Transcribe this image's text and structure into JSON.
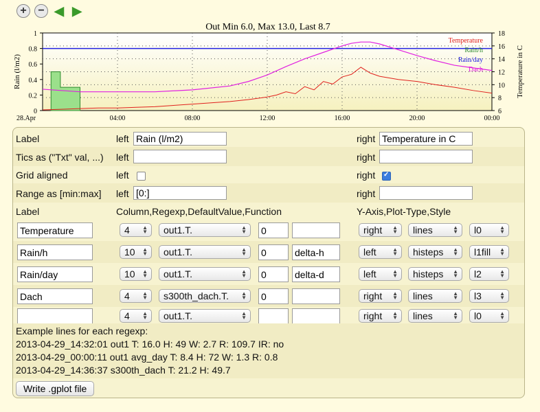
{
  "toolbar": [
    "zoom-in-icon",
    "zoom-out-icon",
    "arrow-left-icon",
    "arrow-right-icon"
  ],
  "chart_data": {
    "type": "line",
    "title": "Out Min 6.0, Max 13.0, Last 8.7",
    "ylabel_left": "Rain (l/m2)",
    "ylabel_right": "Temperature in C",
    "x_ticks": [
      "28.Apr",
      "04:00",
      "08:00",
      "12:00",
      "16:00",
      "20:00",
      "00:00"
    ],
    "y_left_ticks": [
      "0",
      "0.2",
      "0.4",
      "0.6",
      "0.8",
      "1"
    ],
    "y_right_ticks": [
      "6",
      "8",
      "10",
      "12",
      "14",
      "16",
      "18"
    ],
    "ylim_left": [
      0,
      1
    ],
    "ylim_right": [
      6,
      18
    ],
    "xlim_hours": [
      0,
      24
    ],
    "grid": true,
    "legend": "top-right",
    "series": [
      {
        "name": "Temperature",
        "axis": "right",
        "color": "#e0201c",
        "x": [
          0,
          1,
          2,
          3,
          4,
          5,
          6,
          7,
          8,
          9,
          10,
          11,
          12,
          12.5,
          13,
          13.5,
          14,
          14.5,
          15,
          15.5,
          16,
          16.5,
          17,
          17.5,
          18,
          19,
          20,
          21,
          22,
          23,
          24
        ],
        "y": [
          6.1,
          6.2,
          6.3,
          6.4,
          6.4,
          6.5,
          6.6,
          6.8,
          7.0,
          7.2,
          7.4,
          7.7,
          8.1,
          8.4,
          8.9,
          8.6,
          9.7,
          9.2,
          10.5,
          10.1,
          11.2,
          11.6,
          12.7,
          11.8,
          11.3,
          10.8,
          10.5,
          10.0,
          9.6,
          9.1,
          8.7
        ]
      },
      {
        "name": "Rain/h",
        "axis": "left",
        "color": "#2e8b2e",
        "x": [
          0.45,
          0.95,
          1.5,
          2.0
        ],
        "y": [
          0.5,
          0.3,
          0.3,
          0
        ]
      },
      {
        "name": "Rain/day",
        "axis": "left",
        "color": "#2020e0",
        "x": [
          0,
          24
        ],
        "y": [
          0.8,
          0.8
        ]
      },
      {
        "name": "Dach",
        "axis": "right",
        "color": "#e020e0",
        "x": [
          0,
          2,
          4,
          6,
          8,
          10,
          11,
          12,
          13,
          14,
          15,
          16,
          16.5,
          17,
          17.5,
          18,
          19,
          20,
          21,
          22,
          23,
          24
        ],
        "y": [
          9.3,
          8.9,
          8.9,
          8.9,
          9.2,
          9.8,
          10.5,
          11.5,
          12.8,
          14.0,
          15.0,
          16.0,
          16.4,
          16.6,
          16.6,
          16.3,
          15.4,
          14.5,
          13.7,
          13.0,
          12.6,
          12.2
        ]
      }
    ]
  },
  "form": {
    "header": {
      "label": "Label",
      "left": "left",
      "right": "right"
    },
    "label_row": {
      "left_value": "Rain (l/m2)",
      "right_value": "Temperature in C"
    },
    "tics_row": {
      "label": "Tics as (\"Txt\" val, ...)",
      "left": "left",
      "right": "right",
      "left_value": "",
      "right_value": ""
    },
    "grid_row": {
      "label": "Grid aligned",
      "left": "left",
      "right": "right",
      "left_checked": false,
      "right_checked": true
    },
    "range_row": {
      "label": "Range as [min:max]",
      "left": "left",
      "right": "right",
      "left_value": "[0:]",
      "right_value": ""
    },
    "columns_header": {
      "label": "Label",
      "col": "Column,Regexp,DefaultValue,Function",
      "yaxis": "Y-Axis,Plot-Type,Style"
    },
    "plots": [
      {
        "label": "Temperature",
        "column": "4",
        "regexp": "out1.T.",
        "default": "0",
        "function": "",
        "axis": "right",
        "type": "lines",
        "style": "l0"
      },
      {
        "label": "Rain/h",
        "column": "10",
        "regexp": "out1.T.",
        "default": "0",
        "function": "delta-h",
        "axis": "left",
        "type": "histeps",
        "style": "l1fill"
      },
      {
        "label": "Rain/day",
        "column": "10",
        "regexp": "out1.T.",
        "default": "0",
        "function": "delta-d",
        "axis": "left",
        "type": "histeps",
        "style": "l2"
      },
      {
        "label": "Dach",
        "column": "4",
        "regexp": "s300th_dach.T.",
        "default": "0",
        "function": "",
        "axis": "right",
        "type": "lines",
        "style": "l3"
      },
      {
        "label": "",
        "column": "4",
        "regexp": "out1.T.",
        "default": "",
        "function": "",
        "axis": "right",
        "type": "lines",
        "style": "l0"
      }
    ],
    "examples_title": "Example lines for each regexp:",
    "examples": [
      "2013-04-29_14:32:01 out1 T: 16.0 H: 49 W: 2.7 R: 109.7 IR: no",
      "2013-04-29_00:00:11 out1 avg_day T: 8.4 H: 72 W: 1.3 R: 0.8",
      "2013-04-29_14:36:37 s300th_dach T: 21.2 H: 49.7"
    ],
    "write_button": "Write .gplot file"
  }
}
